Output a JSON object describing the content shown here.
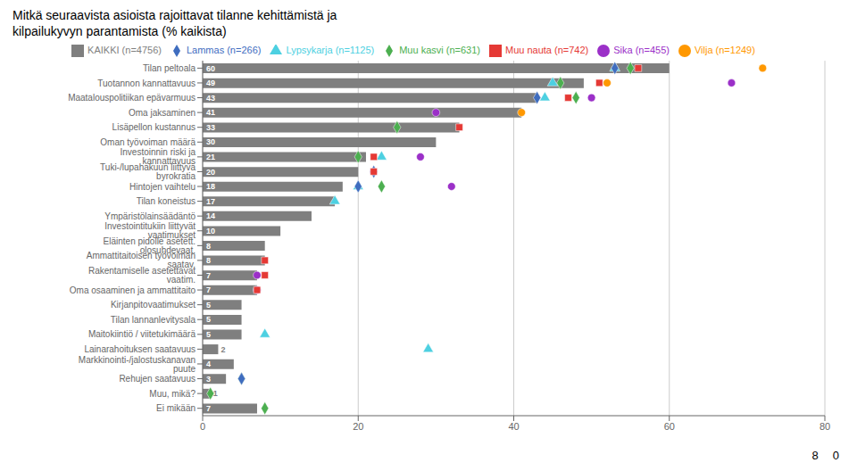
{
  "chart_data": {
    "type": "bar",
    "orientation": "horizontal",
    "title": "Mitkä seuraavista asioista rajoittavat tilanne kehittämistä ja",
    "subtitle": "kilpailukyvyn parantamista (% kaikista)",
    "categories": [
      "Tilan peltoala",
      "Tuotannon kannattavuus",
      "Maatalouspolitiikan epävarmuus",
      "Oma jaksaminen",
      "Lisäpellon kustannus",
      "Oman työvoiman määrä",
      "Investoinnin riski ja kannattavuus",
      "Tuki-/lupahakuun liittyvä byrokratia",
      "Hintojen vaihtelu",
      "Tilan koneistus",
      "Ympäristölainsäädäntö",
      "Investointitukiin liittyvät vaatimukset",
      "Eläinten pidolle asetett. olosuhdevaat.",
      "Ammattitaitoisen työvoiman saatav.",
      "Rakentamiselle asetettavat vaatim.",
      "Oma osaaminen ja ammattitaito",
      "Kirjanpitovaatimukset",
      "Tilan lannanlevitysala",
      "Maitokiintiö / viitetukimäärä",
      "Lainarahoituksen saatavuus",
      "Markkinointi-/jalostuskanavan puute",
      "Rehujen saatavuus",
      "Muu, mikä?",
      "Ei mikään"
    ],
    "series": [
      {
        "name": "KAIKKI (n=4756)",
        "type": "bar",
        "color": "#7F7F7F",
        "marker": "square",
        "data_labels": true,
        "values": [
          60,
          49,
          43,
          41,
          33,
          30,
          21,
          20,
          18,
          17,
          14,
          10,
          8,
          8,
          7,
          7,
          5,
          5,
          5,
          2,
          4,
          3,
          1,
          7
        ]
      },
      {
        "name": "Sika (n=455)",
        "type": "scatter",
        "color": "#9B30C8",
        "marker": "circle",
        "values": [
          null,
          68,
          50,
          30,
          null,
          null,
          28,
          22,
          32,
          null,
          null,
          null,
          null,
          null,
          7,
          7,
          null,
          null,
          null,
          null,
          null,
          null,
          null,
          null
        ]
      },
      {
        "name": "Muu kasvi (n=631)",
        "type": "scatter",
        "color": "#4CAF50",
        "marker": "diamond",
        "values": [
          55,
          46,
          48,
          null,
          25,
          null,
          20,
          null,
          23,
          null,
          null,
          null,
          null,
          null,
          null,
          null,
          null,
          null,
          null,
          null,
          null,
          5,
          1,
          8
        ]
      },
      {
        "name": "Lypsykarja (n=1125)",
        "type": "scatter",
        "color": "#4DD0E1",
        "marker": "triangle",
        "values": [
          53,
          45,
          44,
          null,
          null,
          null,
          23,
          null,
          20,
          17,
          null,
          null,
          null,
          null,
          null,
          null,
          null,
          null,
          8,
          29,
          null,
          null,
          null,
          null
        ]
      },
      {
        "name": "Lammas (n=266)",
        "type": "scatter",
        "color": "#3F6DBF",
        "marker": "diamond",
        "values": [
          53,
          null,
          43,
          null,
          null,
          null,
          null,
          22,
          20,
          null,
          null,
          null,
          null,
          null,
          null,
          null,
          null,
          null,
          null,
          null,
          null,
          5,
          null,
          null
        ]
      },
      {
        "name": "Muu nauta (n=742)",
        "type": "scatter",
        "color": "#E53935",
        "marker": "square",
        "values": [
          56,
          51,
          47,
          null,
          33,
          null,
          22,
          22,
          null,
          null,
          null,
          null,
          null,
          8,
          8,
          7,
          null,
          null,
          null,
          null,
          null,
          null,
          null,
          null
        ]
      },
      {
        "name": "Vilja (n=1249)",
        "type": "scatter",
        "color": "#FF9800",
        "marker": "circle",
        "values": [
          72,
          52,
          null,
          41,
          null,
          null,
          null,
          null,
          null,
          null,
          null,
          null,
          null,
          null,
          null,
          null,
          null,
          null,
          null,
          null,
          null,
          null,
          null,
          null
        ]
      }
    ],
    "xlim": [
      0,
      80
    ],
    "xticks": [
      0,
      20,
      40,
      60,
      80
    ],
    "grid": true,
    "legend": "top",
    "annotations": [
      "8",
      "0"
    ]
  }
}
